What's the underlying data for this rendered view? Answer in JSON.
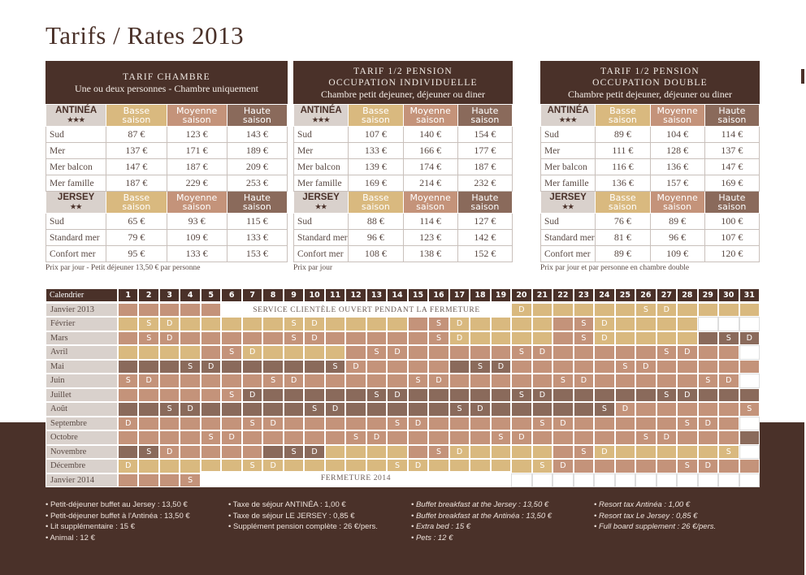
{
  "title": "Tarifs / Rates 2013",
  "colors": {
    "basse": "#d9b97f",
    "moyenne": "#c4937a",
    "haute": "#8a6a5b",
    "brown": "#4a3129"
  },
  "season_labels": {
    "basse": [
      "Basse",
      "saison"
    ],
    "moyenne": [
      "Moyenne",
      "saison"
    ],
    "haute": [
      "Haute",
      "saison"
    ]
  },
  "tables": [
    {
      "title_lines": [
        "TARIF CHAMBRE"
      ],
      "subtitle": "Une ou deux personnes - Chambre uniquement",
      "antinea": {
        "name": "ANTINÉA",
        "stars": "★★★",
        "rows": [
          [
            "Sud",
            "87 €",
            "123 €",
            "143 €"
          ],
          [
            "Mer",
            "137 €",
            "171 €",
            "189 €"
          ],
          [
            "Mer balcon",
            "147 €",
            "187 €",
            "209 €"
          ],
          [
            "Mer famille",
            "187 €",
            "229 €",
            "253 €"
          ]
        ]
      },
      "jersey": {
        "name": "JERSEY",
        "stars": "★★",
        "rows": [
          [
            "Sud",
            "65 €",
            "93 €",
            "115 €"
          ],
          [
            "Standard mer",
            "79 €",
            "109 €",
            "133 €"
          ],
          [
            "Confort mer",
            "95 €",
            "133 €",
            "153 €"
          ]
        ]
      },
      "note": "Prix par jour - Petit déjeuner 13,50 € par personne"
    },
    {
      "title_lines": [
        "TARIF 1/2 PENSION",
        "OCCUPATION INDIVIDUELLE"
      ],
      "subtitle": "Chambre petit dejeuner, déjeuner ou diner",
      "antinea": {
        "name": "ANTINÉA",
        "stars": "★★★",
        "rows": [
          [
            "Sud",
            "107 €",
            "140 €",
            "154 €"
          ],
          [
            "Mer",
            "133 €",
            "166 €",
            "177 €"
          ],
          [
            "Mer balcon",
            "139 €",
            "174 €",
            "187 €"
          ],
          [
            "Mer famille",
            "169 €",
            "214 €",
            "232 €"
          ]
        ]
      },
      "jersey": {
        "name": "JERSEY",
        "stars": "★★",
        "rows": [
          [
            "Sud",
            "88 €",
            "114 €",
            "127 €"
          ],
          [
            "Standard mer",
            "96 €",
            "123 €",
            "142 €"
          ],
          [
            "Confort mer",
            "108 €",
            "138 €",
            "152 €"
          ]
        ]
      },
      "note": "Prix par jour"
    },
    {
      "title_lines": [
        "TARIF 1/2 PENSION",
        "OCCUPATION DOUBLE"
      ],
      "subtitle": "Chambre petit dejeuner, déjeuner ou diner",
      "antinea": {
        "name": "ANTINÉA",
        "stars": "★★★",
        "rows": [
          [
            "Sud",
            "89 €",
            "104 €",
            "114 €"
          ],
          [
            "Mer",
            "111 €",
            "128 €",
            "137 €"
          ],
          [
            "Mer balcon",
            "116 €",
            "136 €",
            "147 €"
          ],
          [
            "Mer famille",
            "136 €",
            "157 €",
            "169 €"
          ]
        ]
      },
      "jersey": {
        "name": "JERSEY",
        "stars": "★★",
        "rows": [
          [
            "Sud",
            "76 €",
            "89 €",
            "100 €"
          ],
          [
            "Standard mer",
            "81 €",
            "96 €",
            "107 €"
          ],
          [
            "Confort mer",
            "89 €",
            "109 €",
            "120 €"
          ]
        ]
      },
      "note": "Prix par jour et par personne en chambre double"
    }
  ],
  "calendar": {
    "header": "Calendrier",
    "banner_open": "SERVICE CLIENTÈLE OUVERT PENDANT LA FERMETURE",
    "banner_closed": "FERMETURE 2014",
    "rows": [
      {
        "month": "Janvier 2013",
        "days": "M M M M M W W W W W W W W W W W W W W B:D B B B B B B:S B:D B B B B"
      },
      {
        "month": "Février",
        "days": "B B:S B:D B B B B B B:S B:D B B B B M M:S B:D B B B B M M:S B:D B B B B W W W"
      },
      {
        "month": "Mars",
        "days": "M M:S M:D M M M M M M:S M:D M M M M M M:S B:D B B B B M M:S B:D B B B B H H:S H:D"
      },
      {
        "month": "Avril",
        "days": "B B B B M M:S B:D B B B B M M:S M:D M M M M M M:S M:D M M M M M M:S M:D M M W"
      },
      {
        "month": "Mai",
        "days": "H H H H:S H:D H H H H H H:S M:D M M M M H H:S H:D M M M M M M:S M:D M M M M M"
      },
      {
        "month": "Juin",
        "days": "M:S M:D M M M M M M:S M:D M M M M M M:S M:D M M M M M M:S M:D M M M M M M:S M:D W"
      },
      {
        "month": "Juillet",
        "days": "M M M M M M:S H:D H H H H H H:S H:D H H H H H H:S H:D H H H H H H:S H:D H H H"
      },
      {
        "month": "Août",
        "days": "H H H:S H:D H H H H H H:S H:D H H H H H H:S H:D H H H H H H:S M:D M M M M M M:S"
      },
      {
        "month": "Septembre",
        "days": "M:D M M M M M M:S M:D M M M M M M:S M:D M M M M M M:S M:D M M M M M M:S M:D M W"
      },
      {
        "month": "Octobre",
        "days": "M M M M M:S M:D M M M M M M:S M:D M M M M M M:S M:D M M M M M M:S M:D M M M H"
      },
      {
        "month": "Novembre",
        "days": "H H:S M:D M M M M H H:S H:D B B B B M M:S B:D B B B B M M:S B:D B B B B B B:S W"
      },
      {
        "month": "Décembre",
        "days": "B:D B B B B B B:S B:D B B B B B B:S B:D B B B B B B:S M:D M M M M M M:S M:D M M"
      },
      {
        "month": "Janvier 2014",
        "days": "M M M M:S W W W W W W W W W W W W W W W W W W W W W W W W W W W"
      }
    ]
  },
  "notes": [
    {
      "italic": false,
      "items": [
        "• Petit-déjeuner buffet au Jersey : 13,50 €",
        "• Petit-déjeuner buffet à l'Antinéa : 13,50 €",
        "• Lit supplémentaire : 15 €",
        "• Animal : 12 €"
      ]
    },
    {
      "italic": false,
      "items": [
        "• Taxe de séjour ANTINÉA : 1,00 €",
        "• Taxe de séjour LE JERSEY : 0,85 €",
        "• Supplément pension complète : 26 €/pers."
      ]
    },
    {
      "italic": true,
      "items": [
        "• Buffet breakfast at the Jersey : 13,50 €",
        "• Buffet breakfast at the Antinéa : 13,50 €",
        "• Extra bed : 15 €",
        "• Pets : 12 €"
      ]
    },
    {
      "italic": true,
      "items": [
        "• Resort tax Antinéa : 1,00 €",
        "• Resort tax Le Jersey : 0,85 €",
        "• Full board supplement : 26 €/pers."
      ]
    }
  ]
}
